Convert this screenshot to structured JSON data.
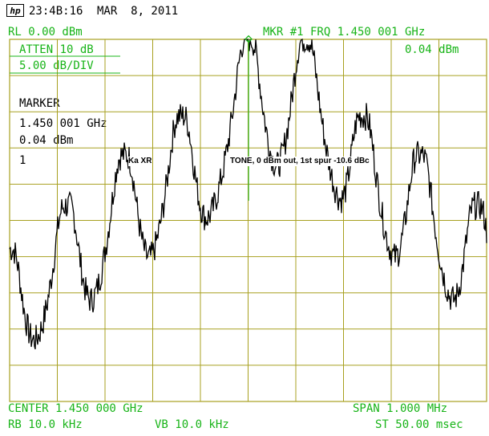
{
  "header": {
    "logo_glyph": "hp",
    "time": "23:4B:16",
    "date": "MAR  8, 2011"
  },
  "settings": {
    "ref_level": "RL 0.00 dBm",
    "marker_readout": "MKR #1 FRQ 1.450 001 GHz",
    "attenuation": "ATTEN 10 dB",
    "marker_amp_readout": "0.04 dBm",
    "scale": "5.00 dB/DIV"
  },
  "marker_panel": {
    "title": "MARKER",
    "frequency": "1.450 001 GHz",
    "amplitude": "0.04 dBm",
    "marker_number": "1"
  },
  "annotations": {
    "left": "Ka XR",
    "right": "TONE, 0 dBm out, 1st spur -10.6 dBc"
  },
  "footer": {
    "center": "CENTER 1.450 000 GHz",
    "span": "SPAN 1.000 MHz",
    "rbw": "RB 10.0 kHz",
    "vbw": "VB 10.0 kHz",
    "sweep": "ST 50.00 msec"
  },
  "colors": {
    "graticule": "#a8a020",
    "text": "#18b418",
    "trace": "#000000",
    "marker": "#18b418"
  },
  "chart_data": {
    "type": "line",
    "xlabel": "",
    "ylabel": "",
    "x_unit": "GHz",
    "y_unit": "dBm",
    "xlim": [
      1.4495,
      1.4505
    ],
    "ylim": [
      -50,
      0
    ],
    "grid": true,
    "peaks": [
      {
        "freq_ghz": 1.4495,
        "level_dbm": -29
      },
      {
        "freq_ghz": 1.44962,
        "level_dbm": -23
      },
      {
        "freq_ghz": 1.44974,
        "level_dbm": -16
      },
      {
        "freq_ghz": 1.44986,
        "level_dbm": -10.6
      },
      {
        "freq_ghz": 1.45,
        "level_dbm": 0.04
      },
      {
        "freq_ghz": 1.45012,
        "level_dbm": 0.0
      },
      {
        "freq_ghz": 1.45024,
        "level_dbm": -10.6
      },
      {
        "freq_ghz": 1.45036,
        "level_dbm": -16
      },
      {
        "freq_ghz": 1.45048,
        "level_dbm": -23
      },
      {
        "freq_ghz": 1.4506,
        "level_dbm": -28
      }
    ],
    "marker": {
      "name": "1",
      "freq_ghz": 1.450001,
      "level_dbm": 0.04
    }
  }
}
